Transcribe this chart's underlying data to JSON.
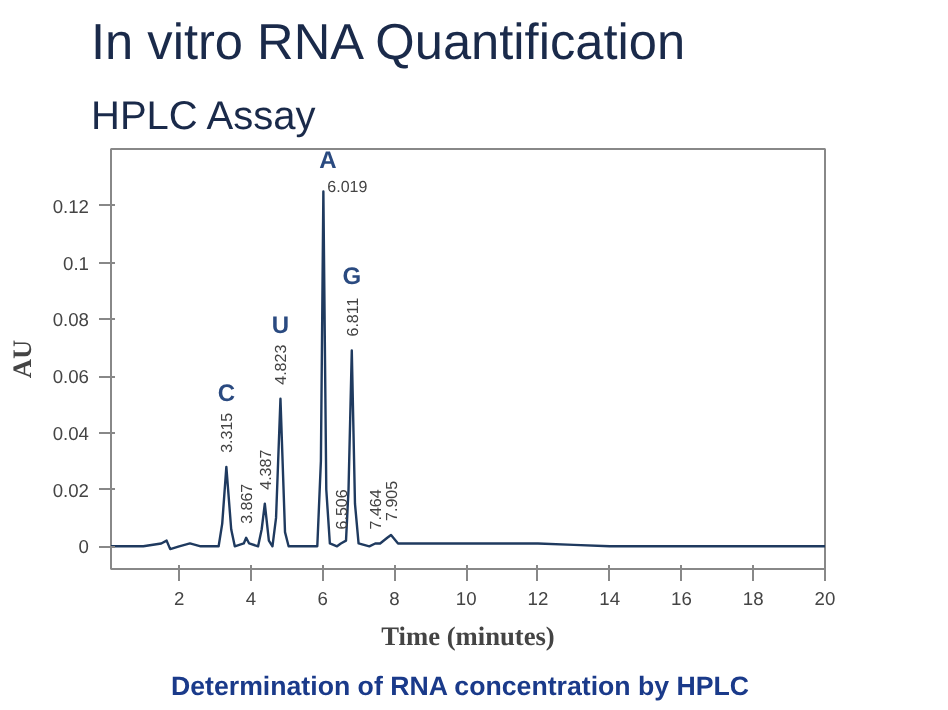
{
  "chart_data": {
    "type": "line",
    "title": "In vitro RNA Quantification",
    "subtitle": "HPLC Assay",
    "xlabel": "Time (minutes)",
    "ylabel": "AU",
    "x": [
      0.1,
      1.0,
      1.5,
      1.65,
      1.75,
      2.0,
      2.3,
      2.6,
      3.1,
      3.2,
      3.315,
      3.45,
      3.55,
      3.8,
      3.867,
      3.95,
      4.2,
      4.3,
      4.387,
      4.5,
      4.6,
      4.7,
      4.823,
      4.95,
      5.05,
      5.85,
      5.95,
      6.019,
      6.1,
      6.2,
      6.4,
      6.506,
      6.65,
      6.72,
      6.811,
      6.9,
      7.0,
      7.3,
      7.464,
      7.6,
      7.8,
      7.905,
      8.1,
      8.5,
      9,
      10,
      11,
      12,
      13,
      14,
      16,
      18,
      20
    ],
    "series": [
      {
        "color": "#1f3a5f",
        "values": [
          0,
          0,
          0.001,
          0.002,
          -0.001,
          0,
          0.001,
          0,
          0,
          0.008,
          0.028,
          0.006,
          0,
          0.001,
          0.003,
          0.001,
          0,
          0.006,
          0.015,
          0.002,
          0,
          0.01,
          0.052,
          0.005,
          0,
          0,
          0.03,
          0.125,
          0.02,
          0.001,
          0,
          0.001,
          0.002,
          0.02,
          0.069,
          0.015,
          0.001,
          0,
          0.001,
          0.001,
          0.003,
          0.004,
          0.001,
          0.001,
          0.001,
          0.001,
          0.001,
          0.001,
          0.0005,
          0,
          0,
          0,
          0
        ]
      }
    ],
    "xlim": [
      0.1,
      20
    ],
    "ylim": [
      -0.008,
      0.14
    ],
    "xticks": [
      2,
      4,
      6,
      8,
      10,
      12,
      14,
      16,
      18,
      20
    ],
    "yticks": [
      {
        "value": 0,
        "label": "0"
      },
      0.02,
      0.04,
      0.06,
      0.08,
      0.1,
      0.12
    ],
    "grid": false,
    "marker": "none",
    "line_style": "solid",
    "annotations": [
      {
        "text": "C",
        "x": 3.315,
        "y": 0.028
      },
      {
        "text": "3.315",
        "x": 3.315,
        "y": 0.028
      },
      {
        "text": "3.867",
        "x": 3.867,
        "y": 0.003
      },
      {
        "text": "4.387",
        "x": 4.387,
        "y": 0.015
      },
      {
        "text": "U",
        "x": 4.823,
        "y": 0.052
      },
      {
        "text": "4.823",
        "x": 4.823,
        "y": 0.052
      },
      {
        "text": "A",
        "x": 6.019,
        "y": 0.125
      },
      {
        "text": "6.019",
        "x": 6.019,
        "y": 0.125
      },
      {
        "text": "6.506",
        "x": 6.506,
        "y": 0.001
      },
      {
        "text": "G",
        "x": 6.811,
        "y": 0.069
      },
      {
        "text": "6.811",
        "x": 6.811,
        "y": 0.069
      },
      {
        "text": "7.464",
        "x": 7.464,
        "y": 0.001
      },
      {
        "text": "7.905",
        "x": 7.905,
        "y": 0.004
      },
      "Determination of RNA concentration by HPLC"
    ]
  }
}
